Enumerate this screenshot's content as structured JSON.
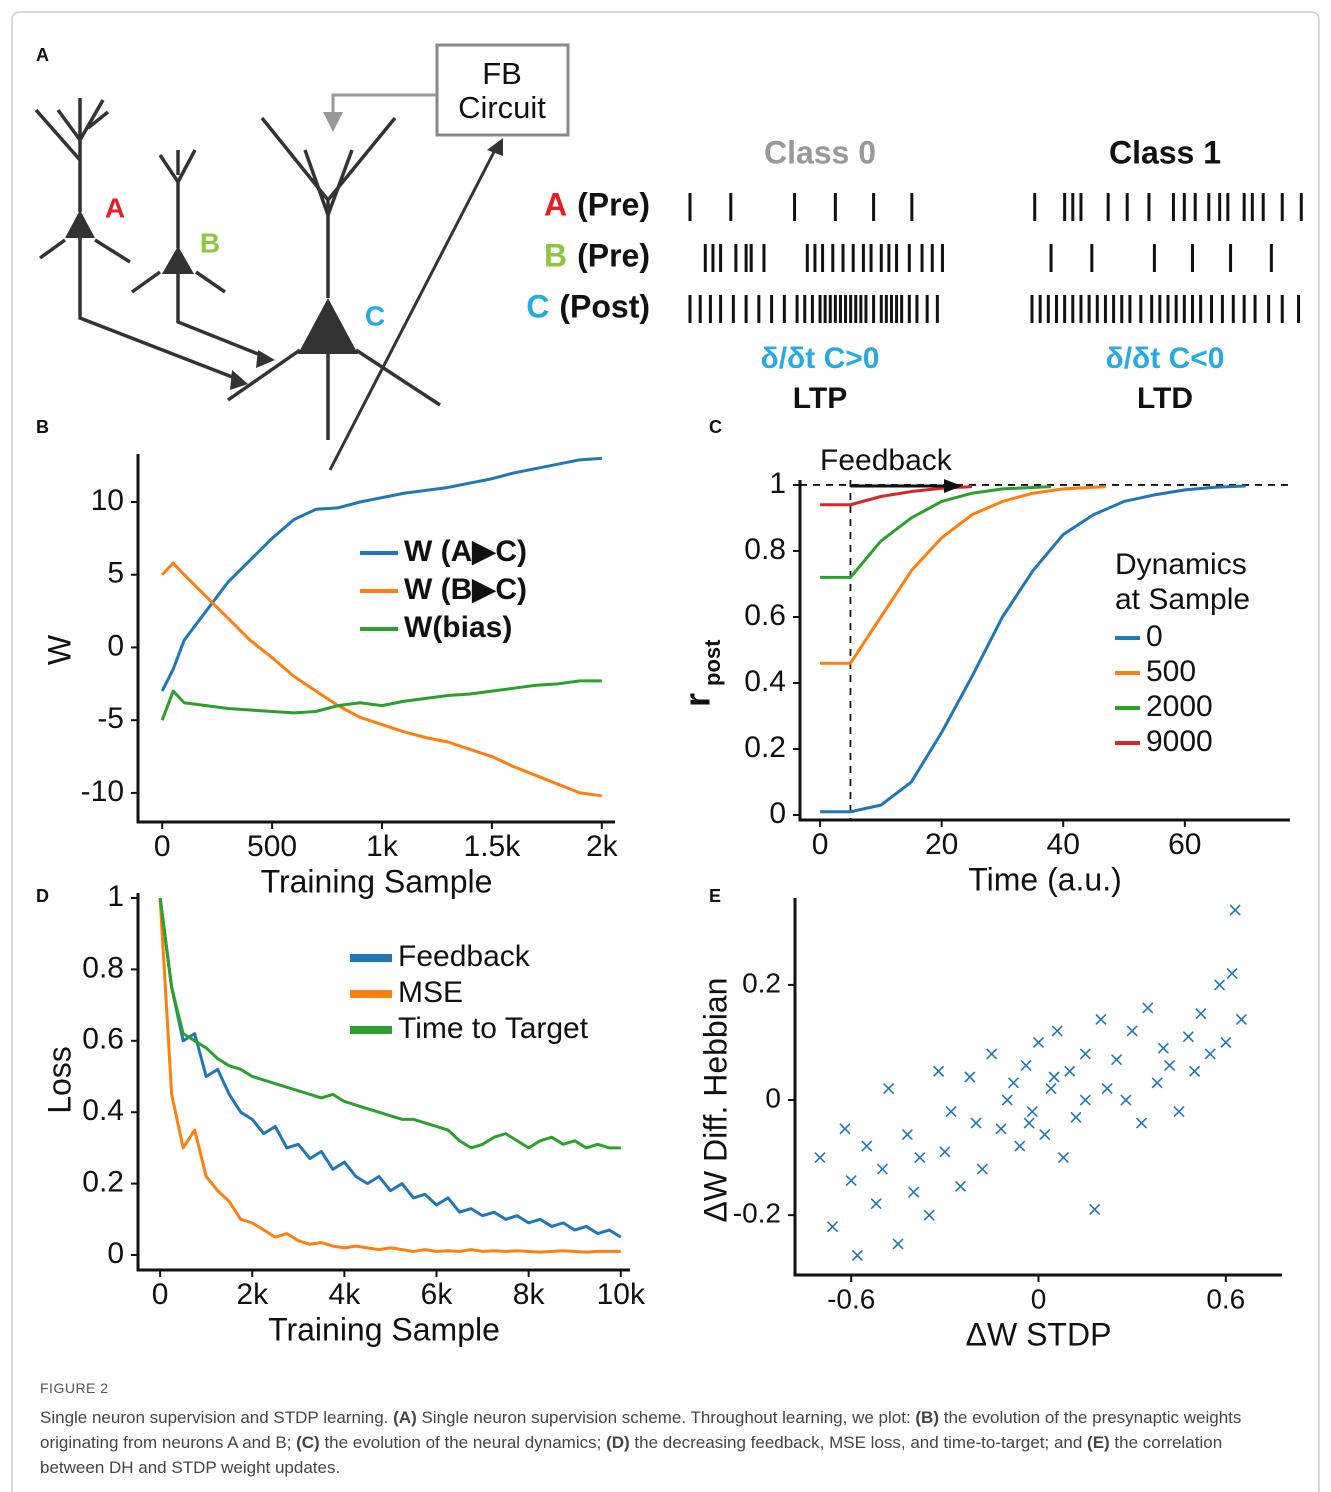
{
  "panel_a": {
    "panel_label": "A",
    "fb_box": [
      "FB",
      "Circuit"
    ],
    "neuron_labels": [
      {
        "text": "A",
        "color": "#e31e24"
      },
      {
        "text": "B",
        "color": "#8dc63f"
      },
      {
        "text": "C",
        "color": "#27aae1"
      }
    ],
    "class_titles": [
      {
        "text": "Class 0",
        "color": "#999999"
      },
      {
        "text": "Class 1",
        "color": "#111111"
      }
    ],
    "rows": [
      {
        "letter": "A",
        "color": "#e31e24",
        "role": "(Pre)",
        "class0": [
          0,
          16,
          41,
          57,
          72,
          87
        ],
        "class1": [
          1,
          12,
          15,
          18,
          28,
          35,
          43,
          52,
          56,
          60,
          65,
          69,
          72,
          78,
          81,
          85,
          92,
          99
        ]
      },
      {
        "letter": "B",
        "color": "#8dc63f",
        "role": "(Pre)",
        "class0": [
          6,
          9,
          12,
          18,
          22,
          24,
          29,
          46,
          49,
          52,
          56,
          60,
          64,
          68,
          71,
          75,
          78,
          81,
          86,
          91,
          95,
          99
        ],
        "class1": [
          7,
          22,
          45,
          59,
          73,
          88
        ]
      },
      {
        "letter": "C",
        "color": "#27aae1",
        "role": "(Post)",
        "class0": [
          0,
          4,
          8,
          12,
          17,
          22,
          27,
          32,
          37,
          42,
          45,
          48,
          51,
          53,
          55,
          57,
          59,
          61,
          63,
          65,
          67,
          69,
          72,
          75,
          77,
          79,
          81,
          83,
          86,
          89,
          93,
          97
        ],
        "class1": [
          0,
          3,
          6,
          9,
          12,
          15,
          18,
          21,
          24,
          27,
          30,
          33,
          36,
          40,
          44,
          47,
          50,
          53,
          56,
          59,
          62,
          66,
          70,
          74,
          78,
          82,
          87,
          92,
          98
        ]
      }
    ],
    "rules": [
      {
        "derivative": "δ/δt C>0",
        "name": "LTP"
      },
      {
        "derivative": "δ/δt C<0",
        "name": "LTD"
      }
    ]
  },
  "chart_data": [
    {
      "type": "line",
      "panel_label": "B",
      "x_label": "Training Sample",
      "y_label": "W",
      "x": [
        0,
        50,
        100,
        200,
        300,
        400,
        500,
        600,
        700,
        800,
        900,
        1000,
        1100,
        1200,
        1300,
        1400,
        1500,
        1600,
        1700,
        1800,
        1900,
        2000
      ],
      "series": [
        {
          "name": "W (A▶C)",
          "color": "#1f77b4",
          "values": [
            -3,
            -1.5,
            0.5,
            2.5,
            4.5,
            6,
            7.5,
            8.8,
            9.5,
            9.6,
            10,
            10.3,
            10.6,
            10.8,
            11,
            11.3,
            11.6,
            12,
            12.3,
            12.6,
            12.9,
            13
          ]
        },
        {
          "name": "W (B▶C)",
          "color": "#ff7f0e",
          "values": [
            5,
            5.8,
            5,
            3.5,
            2,
            0.5,
            -0.7,
            -2,
            -3,
            -4,
            -4.8,
            -5.3,
            -5.8,
            -6.2,
            -6.5,
            -7,
            -7.5,
            -8.2,
            -8.8,
            -9.4,
            -10,
            -10.2
          ]
        },
        {
          "name": "W(bias)",
          "color": "#2ca02c",
          "values": [
            -5,
            -3,
            -3.8,
            -4,
            -4.2,
            -4.3,
            -4.4,
            -4.5,
            -4.4,
            -4,
            -3.8,
            -4,
            -3.7,
            -3.5,
            -3.3,
            -3.2,
            -3,
            -2.8,
            -2.6,
            -2.5,
            -2.3,
            -2.3
          ]
        }
      ],
      "xlim": [
        -110,
        2060
      ],
      "ylim": [
        -12,
        13.3
      ],
      "xticks": [
        0,
        500,
        {
          "value": 1000,
          "label": "1k"
        },
        {
          "value": 1500,
          "label": "1.5k"
        },
        {
          "value": 2000,
          "label": "2k"
        }
      ],
      "yticks": [
        -10,
        -5,
        0,
        5,
        10
      ]
    },
    {
      "type": "line",
      "panel_label": "C",
      "x_label": "Time (a.u.)",
      "y_label": "r",
      "y_label_sub": "post",
      "annotation": "Feedback",
      "legend_title": [
        "Dynamics",
        "at Sample"
      ],
      "threshold": 1,
      "feedback_time": 5,
      "series": [
        {
          "name": "0",
          "color": "#1f77b4",
          "x": [
            0,
            5,
            10,
            15,
            20,
            25,
            30,
            35,
            40,
            45,
            50,
            55,
            60,
            65,
            70
          ],
          "values": [
            0.01,
            0.01,
            0.03,
            0.1,
            0.25,
            0.42,
            0.6,
            0.74,
            0.85,
            0.91,
            0.95,
            0.97,
            0.985,
            0.993,
            0.997
          ]
        },
        {
          "name": "500",
          "color": "#ff7f0e",
          "x": [
            0,
            5,
            10,
            15,
            20,
            25,
            30,
            35,
            40,
            47
          ],
          "values": [
            0.46,
            0.46,
            0.6,
            0.74,
            0.84,
            0.91,
            0.95,
            0.975,
            0.988,
            0.995
          ]
        },
        {
          "name": "2000",
          "color": "#2ca02c",
          "x": [
            0,
            5,
            10,
            15,
            20,
            25,
            30,
            38
          ],
          "values": [
            0.72,
            0.72,
            0.83,
            0.9,
            0.95,
            0.975,
            0.988,
            0.995
          ]
        },
        {
          "name": "9000",
          "color": "#d62728",
          "x": [
            0,
            5,
            10,
            15,
            20,
            25
          ],
          "values": [
            0.94,
            0.94,
            0.965,
            0.98,
            0.99,
            0.995
          ]
        }
      ],
      "xlim": [
        -3.3,
        77.3
      ],
      "ylim": [
        -0.015,
        1.015
      ],
      "xticks": [
        0,
        20,
        40,
        60
      ],
      "yticks": [
        0,
        0.2,
        0.4,
        0.6,
        0.8,
        1
      ]
    },
    {
      "type": "line",
      "panel_label": "D",
      "x_label": "Training Sample",
      "y_label": "Loss",
      "x": [
        0,
        250,
        500,
        750,
        1000,
        1250,
        1500,
        1750,
        2000,
        2250,
        2500,
        2750,
        3000,
        3250,
        3500,
        3750,
        4000,
        4250,
        4500,
        4750,
        5000,
        5250,
        5500,
        5750,
        6000,
        6250,
        6500,
        6750,
        7000,
        7250,
        7500,
        7750,
        8000,
        8250,
        8500,
        8750,
        9000,
        9250,
        9500,
        9750,
        10000
      ],
      "series": [
        {
          "name": "Feedback",
          "color": "#1f77b4",
          "values": [
            1,
            0.75,
            0.6,
            0.62,
            0.5,
            0.52,
            0.45,
            0.4,
            0.38,
            0.34,
            0.36,
            0.3,
            0.31,
            0.27,
            0.29,
            0.24,
            0.26,
            0.22,
            0.2,
            0.22,
            0.18,
            0.2,
            0.16,
            0.17,
            0.14,
            0.16,
            0.12,
            0.13,
            0.11,
            0.12,
            0.1,
            0.11,
            0.09,
            0.1,
            0.08,
            0.09,
            0.07,
            0.08,
            0.06,
            0.07,
            0.05
          ]
        },
        {
          "name": "MSE",
          "color": "#ff7f0e",
          "values": [
            1,
            0.45,
            0.3,
            0.35,
            0.22,
            0.18,
            0.15,
            0.1,
            0.09,
            0.07,
            0.05,
            0.06,
            0.04,
            0.03,
            0.035,
            0.025,
            0.02,
            0.025,
            0.02,
            0.015,
            0.02,
            0.015,
            0.01,
            0.015,
            0.01,
            0.012,
            0.01,
            0.015,
            0.01,
            0.012,
            0.01,
            0.012,
            0.01,
            0.008,
            0.01,
            0.012,
            0.01,
            0.008,
            0.01,
            0.01,
            0.01
          ]
        },
        {
          "name": "Time to Target",
          "color": "#2ca02c",
          "values": [
            1,
            0.75,
            0.62,
            0.6,
            0.58,
            0.55,
            0.53,
            0.52,
            0.5,
            0.49,
            0.48,
            0.47,
            0.46,
            0.45,
            0.44,
            0.45,
            0.43,
            0.42,
            0.41,
            0.4,
            0.39,
            0.38,
            0.38,
            0.37,
            0.36,
            0.35,
            0.32,
            0.3,
            0.31,
            0.33,
            0.34,
            0.32,
            0.3,
            0.32,
            0.33,
            0.31,
            0.32,
            0.3,
            0.31,
            0.3,
            0.3
          ]
        }
      ],
      "xlim": [
        -480,
        10200
      ],
      "ylim": [
        -0.042,
        1.014
      ],
      "xticks": [
        0,
        {
          "value": 2000,
          "label": "2k"
        },
        {
          "value": 4000,
          "label": "4k"
        },
        {
          "value": 6000,
          "label": "6k"
        },
        {
          "value": 8000,
          "label": "8k"
        },
        {
          "value": 10000,
          "label": "10k"
        }
      ],
      "yticks": [
        0,
        0.2,
        0.4,
        0.6,
        0.8,
        1
      ]
    },
    {
      "type": "scatter",
      "panel_label": "E",
      "x_label": "ΔW STDP",
      "y_label": "ΔW Diff. Hebbian",
      "color": "#1f77b4",
      "x": [
        -0.7,
        -0.66,
        -0.62,
        -0.6,
        -0.58,
        -0.55,
        -0.52,
        -0.5,
        -0.48,
        -0.45,
        -0.42,
        -0.4,
        -0.38,
        -0.35,
        -0.32,
        -0.3,
        -0.28,
        -0.25,
        -0.22,
        -0.2,
        -0.18,
        -0.15,
        -0.12,
        -0.1,
        -0.08,
        -0.06,
        -0.04,
        -0.02,
        0,
        0.02,
        0.04,
        0.06,
        0.08,
        0.1,
        0.12,
        0.15,
        0.18,
        0.2,
        0.22,
        0.25,
        0.28,
        0.3,
        0.33,
        0.35,
        0.38,
        0.4,
        0.42,
        0.45,
        0.48,
        0.5,
        0.52,
        0.55,
        0.58,
        0.6,
        0.62,
        0.63,
        0.65,
        -0.03,
        0.05,
        0.15
      ],
      "values": [
        -0.1,
        -0.22,
        -0.05,
        -0.14,
        -0.27,
        -0.08,
        -0.18,
        -0.12,
        0.02,
        -0.25,
        -0.06,
        -0.16,
        -0.1,
        -0.2,
        0.05,
        -0.09,
        -0.02,
        -0.15,
        0.04,
        -0.04,
        -0.12,
        0.08,
        -0.05,
        0,
        0.03,
        -0.08,
        0.06,
        -0.02,
        0.1,
        -0.06,
        0.02,
        0.12,
        -0.1,
        0.05,
        -0.03,
        0.08,
        -0.19,
        0.14,
        0.02,
        0.07,
        0,
        0.12,
        -0.04,
        0.16,
        0.03,
        0.09,
        0.06,
        -0.02,
        0.11,
        0.05,
        0.15,
        0.08,
        0.2,
        0.1,
        0.22,
        0.33,
        0.14,
        -0.04,
        0.04,
        0
      ],
      "xlim": [
        -0.78,
        0.78
      ],
      "ylim": [
        -0.304,
        0.351
      ],
      "xticks": [
        -0.6,
        0,
        0.6
      ],
      "yticks": [
        -0.2,
        0,
        0.2
      ]
    }
  ],
  "caption": {
    "label": "FIGURE 2",
    "segments": [
      {
        "text": "Single neuron supervision and STDP learning. ",
        "bold": false
      },
      {
        "text": "(A)",
        "bold": true
      },
      {
        "text": " Single neuron supervision scheme. Throughout learning, we plot: ",
        "bold": false
      },
      {
        "text": "(B)",
        "bold": true
      },
      {
        "text": " the evolution of the presynaptic weights originating from neurons A and B; ",
        "bold": false
      },
      {
        "text": "(C)",
        "bold": true
      },
      {
        "text": " the evolution of the neural dynamics; ",
        "bold": false
      },
      {
        "text": "(D)",
        "bold": true
      },
      {
        "text": " the decreasing feedback, MSE loss, and time-to-target; and ",
        "bold": false
      },
      {
        "text": "(E)",
        "bold": true
      },
      {
        "text": " the correlation between DH and STDP weight updates.",
        "bold": false
      }
    ]
  }
}
